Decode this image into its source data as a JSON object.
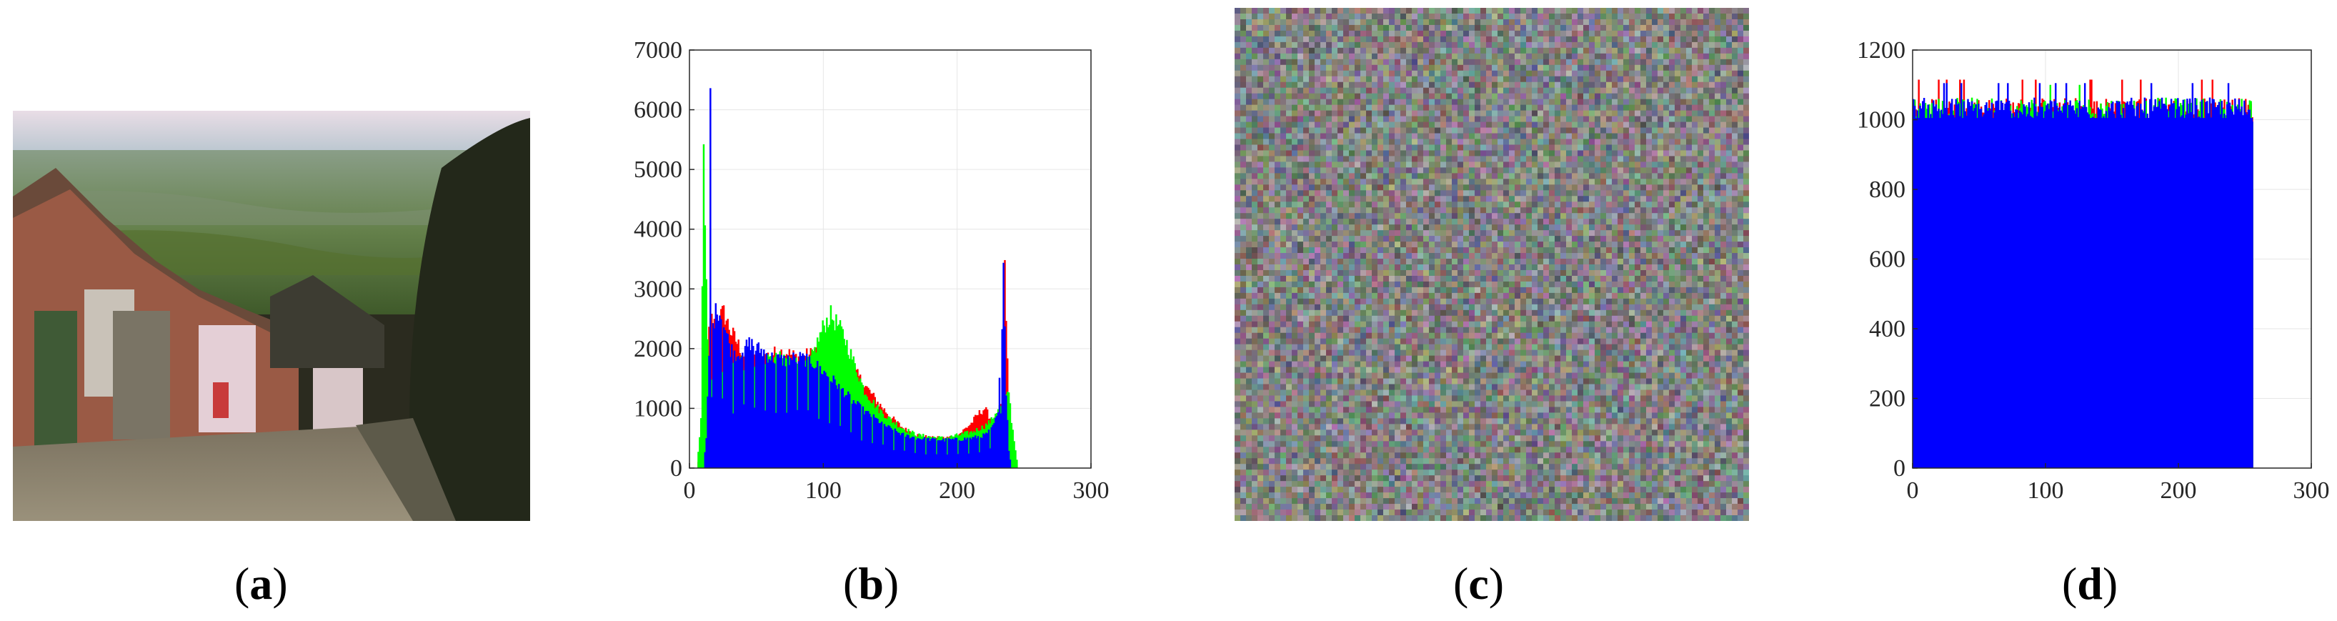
{
  "captions": {
    "a": {
      "open": "(",
      "letter": "a",
      "close": ")"
    },
    "b": {
      "open": "(",
      "letter": "b",
      "close": ")"
    },
    "c": {
      "open": "(",
      "letter": "c",
      "close": ")"
    },
    "d": {
      "open": "(",
      "letter": "d",
      "close": ")"
    }
  },
  "photo": {
    "description_icon": "village-street-photo-icon"
  },
  "noise": {
    "description_icon": "encrypted-noise-image-icon"
  },
  "colors": {
    "red": "#ff0000",
    "green": "#00ff00",
    "blue": "#0000ff",
    "grid": "#e6e6e6"
  },
  "chart_data": [
    {
      "panel": "b",
      "type": "bar",
      "title": "",
      "xlabel": "",
      "ylabel": "",
      "xlim": [
        0,
        300
      ],
      "ylim": [
        0,
        7000
      ],
      "xticks": [
        0,
        100,
        200,
        300
      ],
      "yticks": [
        0,
        1000,
        2000,
        3000,
        4000,
        5000,
        6000,
        7000
      ],
      "grid": true,
      "series": [
        {
          "color": "red",
          "x": [
            5,
            8,
            10,
            12,
            14,
            16,
            18,
            20,
            25,
            30,
            35,
            40,
            50,
            60,
            70,
            80,
            90,
            100,
            110,
            120,
            130,
            140,
            150,
            160,
            170,
            180,
            190,
            200,
            205,
            210,
            215,
            220,
            225,
            230,
            233,
            235,
            238,
            240,
            245
          ],
          "values": [
            0,
            300,
            1000,
            1600,
            2300,
            2500,
            2400,
            2500,
            2600,
            2300,
            2100,
            1900,
            1800,
            1900,
            1950,
            1850,
            1900,
            2100,
            2000,
            1700,
            1400,
            1100,
            850,
            650,
            550,
            500,
            500,
            550,
            650,
            750,
            900,
            1000,
            800,
            700,
            1200,
            3300,
            1000,
            200,
            0
          ]
        },
        {
          "color": "green",
          "x": [
            5,
            8,
            10,
            12,
            14,
            16,
            18,
            20,
            25,
            30,
            35,
            40,
            50,
            60,
            70,
            80,
            90,
            95,
            100,
            105,
            110,
            115,
            120,
            125,
            130,
            140,
            150,
            160,
            170,
            180,
            190,
            200,
            210,
            215,
            220,
            225,
            230,
            235,
            238,
            240,
            243,
            245
          ],
          "values": [
            0,
            800,
            5100,
            3000,
            1500,
            1400,
            1500,
            1600,
            1700,
            1800,
            1800,
            1750,
            1700,
            1800,
            1850,
            1750,
            1800,
            2100,
            2400,
            2550,
            2400,
            2200,
            1900,
            1600,
            1300,
            1000,
            800,
            650,
            550,
            520,
            500,
            550,
            600,
            650,
            700,
            800,
            1000,
            1100,
            1300,
            800,
            300,
            0
          ]
        },
        {
          "color": "blue",
          "x": [
            10,
            12,
            14,
            15,
            16,
            18,
            20,
            22,
            25,
            30,
            35,
            40,
            45,
            50,
            55,
            60,
            70,
            80,
            90,
            100,
            110,
            120,
            130,
            140,
            150,
            160,
            170,
            180,
            190,
            200,
            210,
            220,
            225,
            230,
            233,
            234,
            236,
            238,
            240
          ],
          "values": [
            0,
            500,
            1800,
            6400,
            2300,
            2500,
            2700,
            2600,
            2400,
            2000,
            1900,
            2000,
            2100,
            2000,
            1950,
            1850,
            1800,
            1850,
            1800,
            1600,
            1400,
            1150,
            950,
            800,
            650,
            550,
            500,
            480,
            470,
            480,
            500,
            550,
            650,
            900,
            2500,
            3450,
            1300,
            300,
            0
          ]
        }
      ]
    },
    {
      "panel": "d",
      "type": "bar",
      "title": "",
      "xlabel": "",
      "ylabel": "",
      "xlim": [
        0,
        300
      ],
      "ylim": [
        0,
        1200
      ],
      "xticks": [
        0,
        100,
        200,
        300
      ],
      "yticks": [
        0,
        200,
        400,
        600,
        800,
        1000,
        1200
      ],
      "grid": true,
      "series": [
        {
          "color": "red",
          "x_range": [
            0,
            255
          ],
          "mean": 1024,
          "spread": 45,
          "max": 1115
        },
        {
          "color": "green",
          "x_range": [
            0,
            255
          ],
          "mean": 1024,
          "spread": 45,
          "max": 1100
        },
        {
          "color": "blue",
          "x_range": [
            0,
            255
          ],
          "mean": 1024,
          "spread": 45,
          "max": 1105
        }
      ]
    }
  ]
}
